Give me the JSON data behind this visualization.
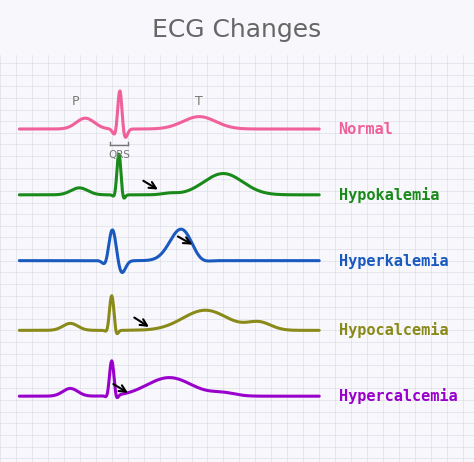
{
  "title": "ECG Changes",
  "title_fontsize": 18,
  "title_color": "#666666",
  "background_color": "#f8f8fc",
  "grid_color": "#d0d0e0",
  "labels": [
    "Normal",
    "Hypokalemia",
    "Hyperkalemia",
    "Hypocalcemia",
    "Hypercalcemia"
  ],
  "colors": [
    "#f0609a",
    "#1a8a1a",
    "#1a5abf",
    "#8a8a1a",
    "#9a00cc"
  ],
  "label_fontsize": 11,
  "row_offsets": [
    3.6,
    1.9,
    0.2,
    -1.6,
    -3.3
  ]
}
